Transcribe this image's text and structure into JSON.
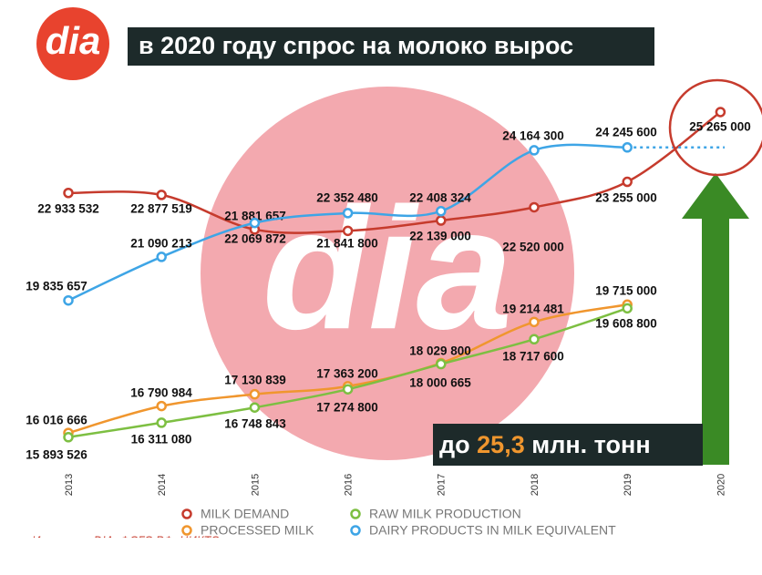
{
  "logo": "dia",
  "chart_data": {
    "type": "line",
    "title": "в 2020 году спрос на молоко вырос",
    "categories": [
      "2013",
      "2014",
      "2015",
      "2016",
      "2017",
      "2018",
      "2019",
      "2020"
    ],
    "ylim": [
      15100000,
      26000000
    ],
    "series": [
      {
        "name": "MILK DEMAND",
        "color": "#c63b2d",
        "values": [
          22933532,
          22877519,
          21881657,
          21841800,
          22139000,
          22520000,
          23255000,
          25265000
        ],
        "value_labels": [
          "22 933 532",
          "22 877 519",
          "21 881 657",
          "21 841 800",
          "22 139 000",
          "22 520 000",
          "23 255 000",
          "25 265 000"
        ]
      },
      {
        "name": "PROCESSED MILK",
        "color": "#f0962e",
        "values": [
          16016666,
          16790984,
          17130839,
          17363200,
          18029800,
          19214481,
          19715000,
          null
        ],
        "value_labels": [
          "16 016 666",
          "16 790 984",
          "17 130 839",
          "17 363 200",
          "18 029 800",
          "19 214 481",
          "19 715 000",
          null
        ]
      },
      {
        "name": "RAW MILK PRODUCTION",
        "color": "#7dbf42",
        "values": [
          15893526,
          16311080,
          16748843,
          17274800,
          18000665,
          18717600,
          19608800,
          null
        ],
        "value_labels": [
          "15 893 526",
          "16 311 080",
          "16 748 843",
          "17 274 800",
          "18 000 665",
          "18 717 600",
          "19 608 800",
          null
        ]
      },
      {
        "name": "DAIRY PRODUCTS IN MILK EQUIVALENT",
        "color": "#3ea5e6",
        "values": [
          19835657,
          21090213,
          22069872,
          22352480,
          22408324,
          24164300,
          24245600,
          null
        ],
        "value_labels": [
          "19 835 657",
          "21 090 213",
          "22 069 872",
          "22 352 480",
          "22 408 324",
          "24 164 300",
          "24 245 600",
          null
        ]
      }
    ],
    "annotation": {
      "prefix": "до",
      "value": "25,3",
      "suffix": "млн. тонн"
    },
    "source": "Источник: DIA, ФСГС РФ, ЦИКТО"
  }
}
